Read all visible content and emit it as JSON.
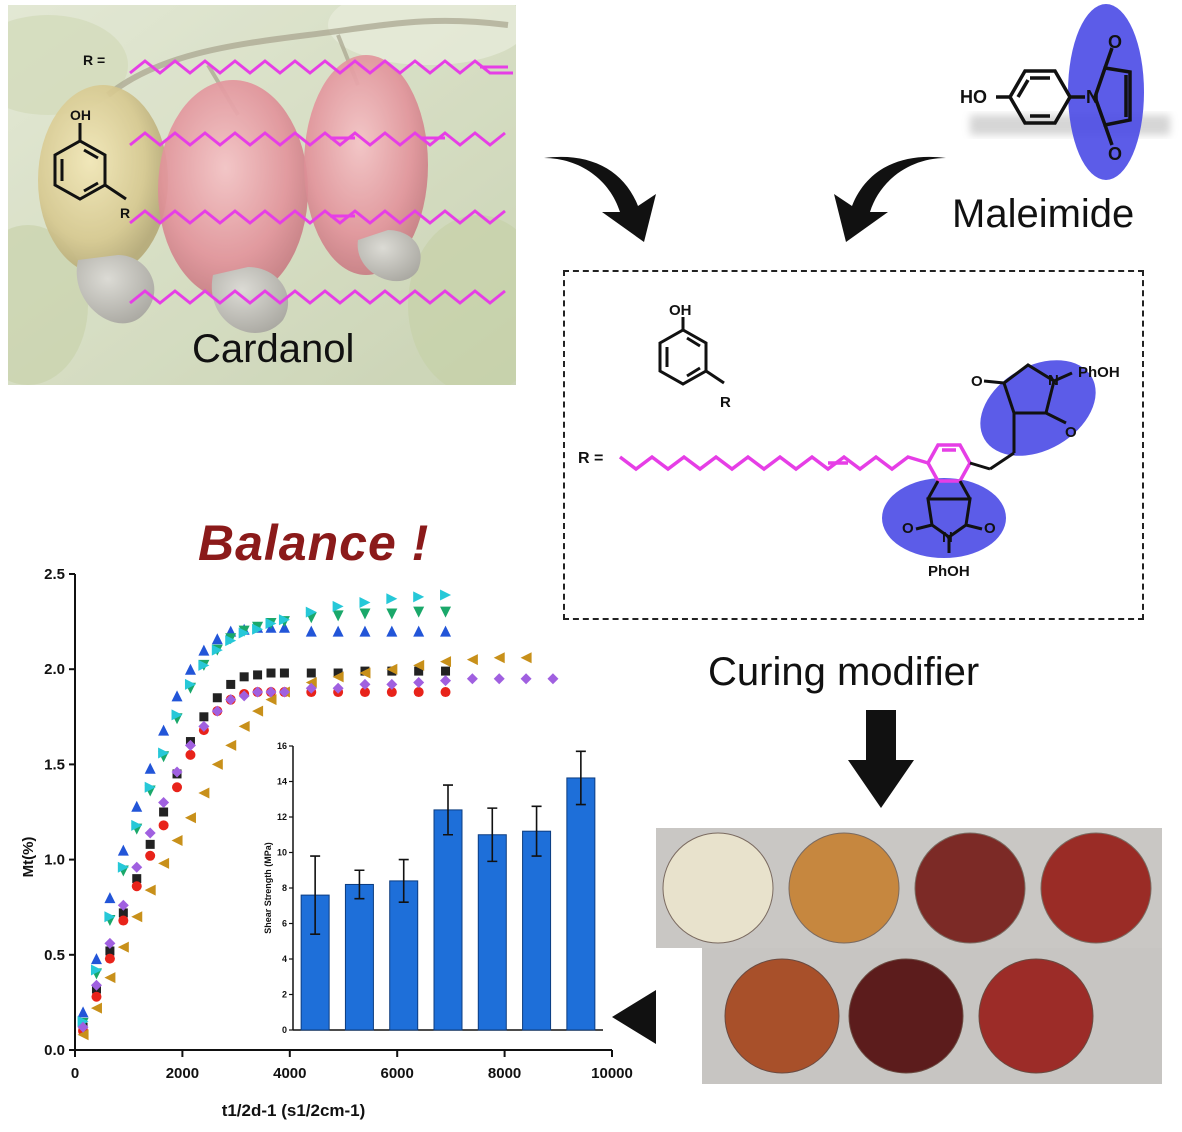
{
  "labels": {
    "cardanol": "Cardanol",
    "maleimide": "Maleimide",
    "curing_modifier": "Curing modifier",
    "balance": "Balance !",
    "r_eq": "R =",
    "oh": "OH",
    "r": "R",
    "ho": "HO",
    "n": "N",
    "o": "O",
    "phoh": "PhOH"
  },
  "chart_data": [
    {
      "type": "scatter",
      "xlabel": "t1/2d-1 (s1/2cm-1)",
      "ylabel": "Mt(%)",
      "xlim": [
        0,
        10000
      ],
      "ylim": [
        0,
        2.5
      ],
      "xticks": [
        "0",
        "2000",
        "4000",
        "6000",
        "8000",
        "10000"
      ],
      "yticks": [
        "0.0",
        "0.5",
        "1.0",
        "1.5",
        "2.0",
        "2.5"
      ],
      "series": [
        {
          "marker": "square",
          "color": "#222222",
          "x": [
            150,
            400,
            650,
            900,
            1150,
            1400,
            1650,
            1900,
            2150,
            2400,
            2650,
            2900,
            3150,
            3400,
            3650,
            3900,
            4400,
            4900,
            5400,
            5900,
            6400,
            6900
          ],
          "y": [
            0.12,
            0.32,
            0.52,
            0.72,
            0.9,
            1.08,
            1.25,
            1.45,
            1.62,
            1.75,
            1.85,
            1.92,
            1.96,
            1.97,
            1.98,
            1.98,
            1.98,
            1.98,
            1.99,
            1.99,
            1.99,
            1.99
          ]
        },
        {
          "marker": "circle",
          "color": "#e8231a",
          "x": [
            150,
            400,
            650,
            900,
            1150,
            1400,
            1650,
            1900,
            2150,
            2400,
            2650,
            2900,
            3150,
            3400,
            3650,
            3900,
            4400,
            4900,
            5400,
            5900,
            6400,
            6900
          ],
          "y": [
            0.1,
            0.28,
            0.48,
            0.68,
            0.86,
            1.02,
            1.18,
            1.38,
            1.55,
            1.68,
            1.78,
            1.84,
            1.87,
            1.88,
            1.88,
            1.88,
            1.88,
            1.88,
            1.88,
            1.88,
            1.88,
            1.88
          ]
        },
        {
          "marker": "triangle-up",
          "color": "#2255d8",
          "x": [
            150,
            400,
            650,
            900,
            1150,
            1400,
            1650,
            1900,
            2150,
            2400,
            2650,
            2900,
            3150,
            3400,
            3650,
            3900,
            4400,
            4900,
            5400,
            5900,
            6400,
            6900
          ],
          "y": [
            0.2,
            0.48,
            0.8,
            1.05,
            1.28,
            1.48,
            1.68,
            1.86,
            2.0,
            2.1,
            2.16,
            2.2,
            2.21,
            2.22,
            2.22,
            2.22,
            2.2,
            2.2,
            2.2,
            2.2,
            2.2,
            2.2
          ]
        },
        {
          "marker": "triangle-down",
          "color": "#1aa86a",
          "x": [
            150,
            400,
            650,
            900,
            1150,
            1400,
            1650,
            1900,
            2150,
            2400,
            2650,
            2900,
            3150,
            3400,
            3650,
            3900,
            4400,
            4900,
            5400,
            5900,
            6400,
            6900
          ],
          "y": [
            0.14,
            0.4,
            0.68,
            0.94,
            1.16,
            1.36,
            1.54,
            1.74,
            1.9,
            2.02,
            2.1,
            2.16,
            2.2,
            2.22,
            2.24,
            2.25,
            2.27,
            2.28,
            2.29,
            2.29,
            2.3,
            2.3
          ]
        },
        {
          "marker": "triangle-right",
          "color": "#26c8d8",
          "x": [
            150,
            400,
            650,
            900,
            1150,
            1400,
            1650,
            1900,
            2150,
            2400,
            2650,
            2900,
            3150,
            3400,
            3650,
            3900,
            4400,
            4900,
            5400,
            5900,
            6400,
            6900
          ],
          "y": [
            0.15,
            0.42,
            0.7,
            0.96,
            1.18,
            1.38,
            1.56,
            1.76,
            1.92,
            2.02,
            2.1,
            2.15,
            2.19,
            2.21,
            2.24,
            2.26,
            2.3,
            2.33,
            2.35,
            2.37,
            2.38,
            2.39
          ]
        },
        {
          "marker": "triangle-left",
          "color": "#c8901a",
          "x": [
            150,
            400,
            650,
            900,
            1150,
            1400,
            1650,
            1900,
            2150,
            2400,
            2650,
            2900,
            3150,
            3400,
            3650,
            3900,
            4400,
            4900,
            5400,
            5900,
            6400,
            6900,
            7400,
            7900,
            8400
          ],
          "y": [
            0.08,
            0.22,
            0.38,
            0.54,
            0.7,
            0.84,
            0.98,
            1.1,
            1.22,
            1.35,
            1.5,
            1.6,
            1.7,
            1.78,
            1.84,
            1.88,
            1.93,
            1.96,
            1.98,
            2.0,
            2.02,
            2.04,
            2.05,
            2.06,
            2.06
          ]
        },
        {
          "marker": "diamond",
          "color": "#a060e0",
          "x": [
            150,
            400,
            650,
            900,
            1150,
            1400,
            1650,
            1900,
            2150,
            2400,
            2650,
            2900,
            3150,
            3400,
            3650,
            3900,
            4400,
            4900,
            5400,
            5900,
            6400,
            6900,
            7400,
            7900,
            8400,
            8900
          ],
          "y": [
            0.12,
            0.34,
            0.56,
            0.76,
            0.96,
            1.14,
            1.3,
            1.46,
            1.6,
            1.7,
            1.78,
            1.84,
            1.86,
            1.88,
            1.88,
            1.88,
            1.9,
            1.9,
            1.92,
            1.92,
            1.93,
            1.94,
            1.95,
            1.95,
            1.95,
            1.95
          ]
        }
      ]
    },
    {
      "type": "bar",
      "ylabel": "Shear Strength (MPa)",
      "ylim": [
        0,
        16
      ],
      "yticks": [
        "0",
        "2",
        "4",
        "6",
        "8",
        "10",
        "12",
        "14",
        "16"
      ],
      "values": [
        7.6,
        8.2,
        8.4,
        12.4,
        11.0,
        11.2,
        14.2
      ],
      "errors": [
        2.2,
        0.8,
        1.2,
        1.4,
        1.5,
        1.4,
        1.5
      ],
      "color": "#1e6fd9"
    }
  ],
  "samples": {
    "top_row": [
      "#e8e2cc",
      "#c6873f",
      "#7c2a26",
      "#9a2c26"
    ],
    "bottom_row": [
      "#a8502a",
      "#5c1c1c",
      "#9c2c28"
    ]
  }
}
